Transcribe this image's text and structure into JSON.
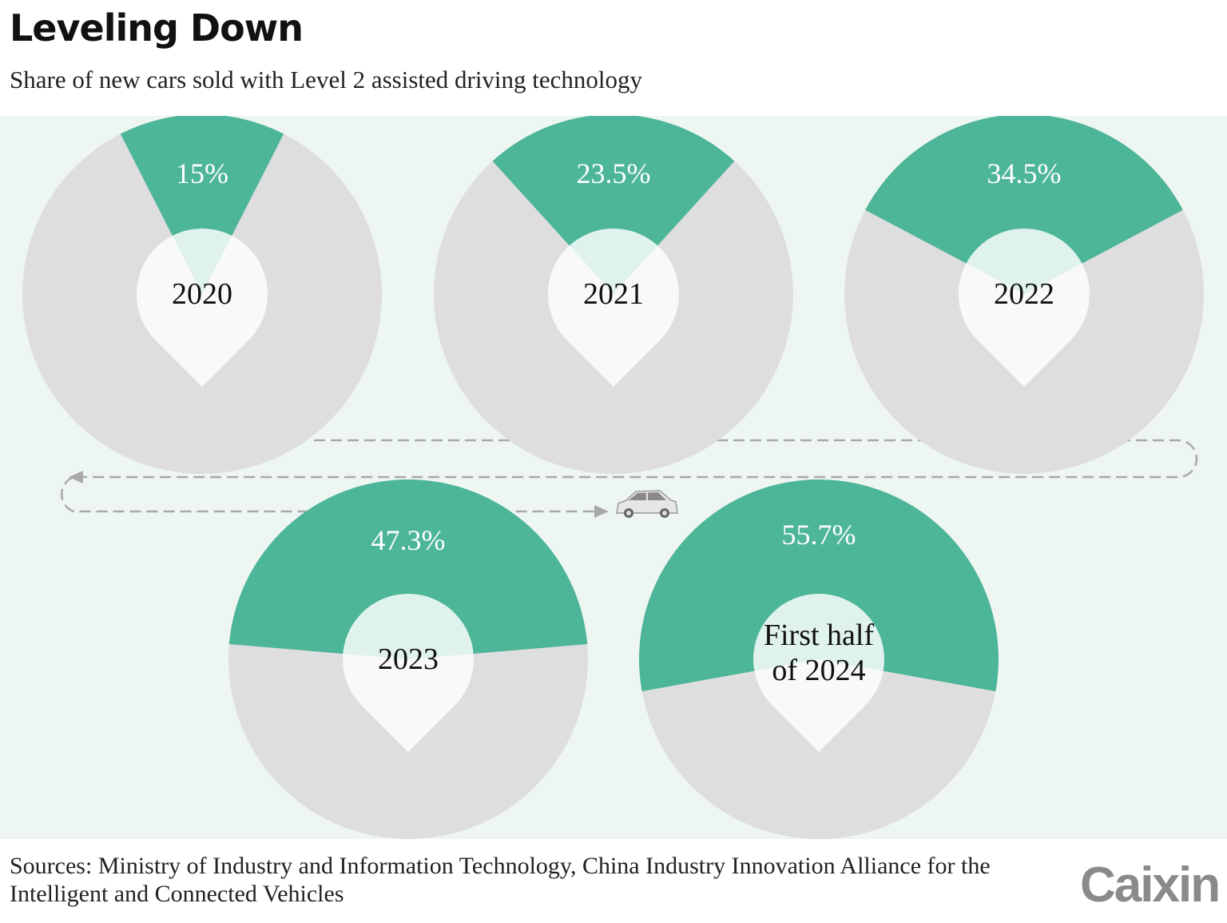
{
  "title": "Leveling Down",
  "subtitle": "Share of new cars sold with Level 2 assisted driving technology",
  "source": "Sources: Ministry of Industry and Information Technology, China Industry Innovation Alliance for the Intelligent and Connected Vehicles",
  "logo": "Caixin",
  "colors": {
    "share": "#4db598",
    "rest": "#dedede",
    "background": "#eef6f2",
    "path": "#a9a9a9"
  },
  "icons": [
    "car-icon",
    "arrow-icon"
  ],
  "chart_data": {
    "type": "pie",
    "categories": [
      [
        "2020"
      ],
      [
        "2021"
      ],
      [
        "2022"
      ],
      [
        "2023"
      ],
      [
        "First half",
        "of 2024"
      ]
    ],
    "values": [
      15,
      23.5,
      34.5,
      47.3,
      55.7
    ],
    "value_labels": [
      "15%",
      "23.5%",
      "34.5%",
      "47.3%",
      "55.7%"
    ],
    "unit": "%",
    "title": "",
    "legend": "none"
  }
}
